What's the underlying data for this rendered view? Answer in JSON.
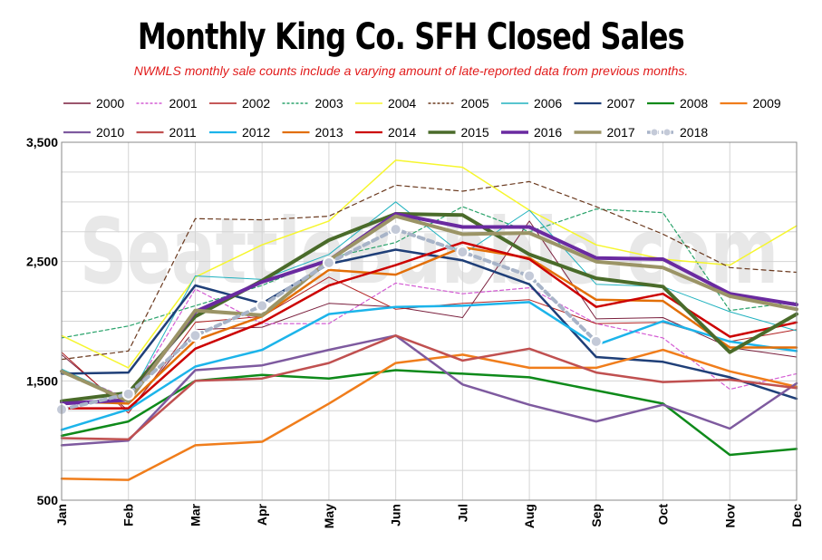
{
  "chart_data": {
    "type": "line",
    "title": "Monthly King Co. SFH Closed Sales",
    "subtitle": "NWMLS monthly sale counts include a varying amount of late-reported  data from previous months.",
    "watermark": "SeattleBubble.com",
    "x": [
      "Jan",
      "Feb",
      "Mar",
      "Apr",
      "May",
      "Jun",
      "Jul",
      "Aug",
      "Sep",
      "Oct",
      "Nov",
      "Dec"
    ],
    "ylim": [
      500,
      3500
    ],
    "yticks": [
      "500",
      "1,500",
      "2,500",
      "3,500"
    ],
    "grid": true,
    "legend_position": "top",
    "series": [
      {
        "name": "2000",
        "color": "#7a1f3d",
        "width": 1,
        "dash": "",
        "values": [
          1720,
          1250,
          1930,
          1950,
          2150,
          2120,
          2030,
          2840,
          2020,
          2030,
          1780,
          1700
        ]
      },
      {
        "name": "2001",
        "color": "#d45cd4",
        "width": 1.2,
        "dash": "4 3",
        "values": [
          1590,
          1350,
          2270,
          1980,
          1980,
          2320,
          2230,
          2280,
          1980,
          1860,
          1430,
          1560
        ]
      },
      {
        "name": "2002",
        "color": "#b22222",
        "width": 1,
        "dash": "",
        "values": [
          1740,
          1230,
          1990,
          2040,
          2370,
          2100,
          2150,
          2180,
          1980,
          1990,
          1830,
          1930
        ]
      },
      {
        "name": "2003",
        "color": "#2aa36b",
        "width": 1.2,
        "dash": "4 3",
        "values": [
          1860,
          1960,
          2130,
          2300,
          2530,
          2660,
          2960,
          2750,
          2940,
          2910,
          2090,
          2160
        ]
      },
      {
        "name": "2004",
        "color": "#f6f62e",
        "width": 1.5,
        "dash": "",
        "values": [
          1880,
          1610,
          2370,
          2640,
          2840,
          3350,
          3290,
          2930,
          2640,
          2520,
          2470,
          2800
        ]
      },
      {
        "name": "2005",
        "color": "#6b3a1f",
        "width": 1.2,
        "dash": "5 4",
        "values": [
          1680,
          1750,
          2860,
          2850,
          2880,
          3140,
          3090,
          3170,
          2960,
          2730,
          2450,
          2410
        ]
      },
      {
        "name": "2006",
        "color": "#20b2bf",
        "width": 1,
        "dash": "",
        "values": [
          1600,
          1340,
          2380,
          2350,
          2560,
          3000,
          2560,
          2930,
          2310,
          2290,
          2080,
          1920
        ]
      },
      {
        "name": "2007",
        "color": "#1f3f78",
        "width": 2.5,
        "dash": "",
        "values": [
          1560,
          1570,
          2300,
          2150,
          2480,
          2600,
          2510,
          2310,
          1700,
          1660,
          1530,
          1350
        ]
      },
      {
        "name": "2008",
        "color": "#0e8a1a",
        "width": 2.5,
        "dash": "",
        "values": [
          1040,
          1160,
          1500,
          1550,
          1520,
          1590,
          1560,
          1530,
          1420,
          1310,
          880,
          930
        ]
      },
      {
        "name": "2009",
        "color": "#f07d1b",
        "width": 2.5,
        "dash": "",
        "values": [
          680,
          670,
          960,
          990,
          1310,
          1650,
          1720,
          1610,
          1610,
          1760,
          1580,
          1450
        ]
      },
      {
        "name": "2010",
        "color": "#7e5a9f",
        "width": 2.5,
        "dash": "",
        "values": [
          960,
          1000,
          1590,
          1630,
          1760,
          1880,
          1470,
          1300,
          1160,
          1300,
          1100,
          1480
        ]
      },
      {
        "name": "2011",
        "color": "#c05050",
        "width": 2.5,
        "dash": "",
        "values": [
          1020,
          1010,
          1500,
          1520,
          1650,
          1880,
          1670,
          1770,
          1570,
          1490,
          1510,
          1440
        ]
      },
      {
        "name": "2012",
        "color": "#1cb4ea",
        "width": 2.5,
        "dash": "",
        "values": [
          1090,
          1260,
          1620,
          1760,
          2060,
          2120,
          2130,
          2160,
          1800,
          2000,
          1830,
          1750
        ]
      },
      {
        "name": "2013",
        "color": "#e26f08",
        "width": 2.5,
        "dash": "",
        "values": [
          1330,
          1310,
          1840,
          2040,
          2430,
          2390,
          2620,
          2530,
          2180,
          2170,
          1780,
          1780
        ]
      },
      {
        "name": "2014",
        "color": "#cc0000",
        "width": 2.5,
        "dash": "",
        "values": [
          1270,
          1270,
          1770,
          1990,
          2300,
          2470,
          2660,
          2520,
          2120,
          2230,
          1870,
          1990
        ]
      },
      {
        "name": "2015",
        "color": "#4a6b2a",
        "width": 4,
        "dash": "",
        "values": [
          1330,
          1400,
          2040,
          2340,
          2680,
          2900,
          2890,
          2560,
          2360,
          2290,
          1740,
          2060
        ]
      },
      {
        "name": "2016",
        "color": "#6a2aa0",
        "width": 4,
        "dash": "",
        "values": [
          1310,
          1340,
          2080,
          2330,
          2510,
          2900,
          2790,
          2790,
          2530,
          2520,
          2230,
          2140
        ]
      },
      {
        "name": "2017",
        "color": "#9b9466",
        "width": 4,
        "dash": "",
        "values": [
          1580,
          1330,
          2090,
          2050,
          2510,
          2880,
          2730,
          2740,
          2500,
          2450,
          2210,
          2100
        ]
      },
      {
        "name": "2018",
        "color": "#a8b4c8",
        "width": 4,
        "dash": "6 5",
        "marker": true,
        "values": [
          1260,
          1390,
          1880,
          2130,
          2490,
          2770,
          2580,
          2380,
          1830,
          null,
          null,
          null
        ]
      }
    ]
  }
}
